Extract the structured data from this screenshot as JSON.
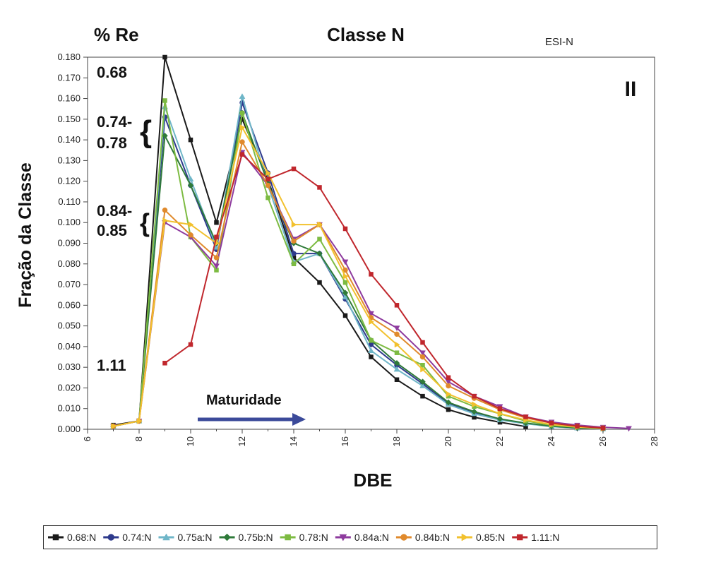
{
  "chart_data": {
    "type": "line",
    "title": "Classe N",
    "subtitle": "ESI-N",
    "panel_label": "II",
    "corner_label": "% Re",
    "xlabel": "DBE",
    "ylabel": "Fração da Classe",
    "xlim": [
      6,
      28
    ],
    "ylim": [
      0,
      0.18
    ],
    "xticks": [
      "6",
      "8",
      "10",
      "12",
      "14",
      "16",
      "18",
      "20",
      "22",
      "24",
      "26",
      "28"
    ],
    "yticks": [
      "0.000",
      "0.010",
      "0.020",
      "0.030",
      "0.040",
      "0.050",
      "0.060",
      "0.070",
      "0.080",
      "0.090",
      "0.100",
      "0.110",
      "0.120",
      "0.130",
      "0.140",
      "0.150",
      "0.160",
      "0.170",
      "0.180"
    ],
    "grid": false,
    "legend_position": "bottom",
    "annotations": {
      "re_068": "0.68",
      "re_074_line1": "0.74-",
      "re_074_line2": "0.78",
      "re_084_line1": "0.84-",
      "re_084_line2": "0.85",
      "re_111": "1.11",
      "brace": "{",
      "arrow_label": "Maturidade",
      "arrow_color": "#3b4a9a"
    },
    "series": [
      {
        "name": "0.68:N",
        "color": "#1a1a1a",
        "marker": "square",
        "x": [
          7,
          8,
          9,
          10,
          11,
          12,
          13,
          14,
          15,
          16,
          17,
          18,
          19,
          20,
          21,
          22,
          23
        ],
        "y": [
          0.002,
          0.004,
          0.18,
          0.14,
          0.1,
          0.15,
          0.121,
          0.083,
          0.071,
          0.055,
          0.035,
          0.024,
          0.016,
          0.0095,
          0.0058,
          0.0034,
          0.0013
        ]
      },
      {
        "name": "0.74:N",
        "color": "#2e3a8c",
        "marker": "circle",
        "x": [
          7,
          8,
          9,
          10,
          11,
          12,
          13,
          14,
          15,
          16,
          17,
          18,
          19,
          20,
          21,
          22,
          23,
          24,
          25,
          26
        ],
        "y": [
          0.0015,
          0.004,
          0.151,
          0.118,
          0.087,
          0.158,
          0.124,
          0.085,
          0.085,
          0.063,
          0.041,
          0.031,
          0.022,
          0.0125,
          0.008,
          0.0048,
          0.0028,
          0.0014,
          0.0006,
          0.0002
        ]
      },
      {
        "name": "0.75a:N",
        "color": "#6fb6c8",
        "marker": "triangle",
        "x": [
          7,
          8,
          9,
          10,
          11,
          12,
          13,
          14,
          15,
          16,
          17,
          18,
          19,
          20,
          21,
          22,
          23,
          24,
          25,
          26
        ],
        "y": [
          0.0015,
          0.004,
          0.156,
          0.121,
          0.088,
          0.161,
          0.118,
          0.081,
          0.085,
          0.064,
          0.038,
          0.029,
          0.021,
          0.012,
          0.0075,
          0.0045,
          0.0027,
          0.0013,
          0.0006,
          0.0002
        ]
      },
      {
        "name": "0.75b:N",
        "color": "#2f7a3a",
        "marker": "diamond",
        "x": [
          7,
          8,
          9,
          10,
          11,
          12,
          13,
          14,
          15,
          16,
          17,
          18,
          19,
          20,
          21,
          22,
          23,
          24,
          25,
          26
        ],
        "y": [
          0.0015,
          0.004,
          0.142,
          0.118,
          0.09,
          0.153,
          0.119,
          0.09,
          0.085,
          0.066,
          0.043,
          0.032,
          0.023,
          0.013,
          0.0085,
          0.005,
          0.003,
          0.0015,
          0.0007,
          0.0003
        ]
      },
      {
        "name": "0.78:N",
        "color": "#7dbb42",
        "marker": "square",
        "x": [
          7,
          8,
          9,
          10,
          11,
          12,
          13,
          14,
          15,
          16,
          17,
          18,
          19,
          20,
          21,
          22,
          23,
          24,
          25,
          26
        ],
        "y": [
          0.0015,
          0.004,
          0.159,
          0.093,
          0.077,
          0.153,
          0.112,
          0.08,
          0.092,
          0.071,
          0.043,
          0.037,
          0.031,
          0.016,
          0.011,
          0.0075,
          0.004,
          0.002,
          0.001,
          0.0004
        ]
      },
      {
        "name": "0.84a:N",
        "color": "#8e3b9e",
        "marker": "triangle-down",
        "x": [
          7,
          8,
          9,
          10,
          11,
          12,
          13,
          14,
          15,
          16,
          17,
          18,
          19,
          20,
          21,
          22,
          23,
          24,
          25,
          26,
          27
        ],
        "y": [
          0.0015,
          0.004,
          0.1,
          0.093,
          0.079,
          0.134,
          0.118,
          0.092,
          0.099,
          0.081,
          0.056,
          0.049,
          0.037,
          0.023,
          0.016,
          0.011,
          0.006,
          0.0035,
          0.002,
          0.001,
          0.0004
        ]
      },
      {
        "name": "0.84b:N",
        "color": "#e08a2c",
        "marker": "circle",
        "x": [
          7,
          8,
          9,
          10,
          11,
          12,
          13,
          14,
          15,
          16,
          17,
          18,
          19,
          20,
          21,
          22,
          23,
          24,
          25,
          26
        ],
        "y": [
          0.0015,
          0.004,
          0.106,
          0.094,
          0.083,
          0.139,
          0.118,
          0.091,
          0.099,
          0.077,
          0.054,
          0.046,
          0.035,
          0.021,
          0.015,
          0.0095,
          0.0055,
          0.003,
          0.0015,
          0.0006
        ]
      },
      {
        "name": "0.85:N",
        "color": "#f2c12e",
        "marker": "triangle-right",
        "x": [
          7,
          8,
          9,
          10,
          11,
          12,
          13,
          14,
          15,
          16,
          17,
          18,
          19,
          20,
          21,
          22,
          23,
          24,
          25,
          26
        ],
        "y": [
          0.0015,
          0.004,
          0.101,
          0.099,
          0.09,
          0.146,
          0.124,
          0.099,
          0.099,
          0.074,
          0.052,
          0.041,
          0.029,
          0.017,
          0.012,
          0.0075,
          0.0045,
          0.0023,
          0.0011,
          0.0004
        ]
      },
      {
        "name": "1.11:N",
        "color": "#c0272d",
        "marker": "square",
        "x": [
          9,
          10,
          11,
          12,
          13,
          14,
          15,
          16,
          17,
          18,
          19,
          20,
          21,
          22,
          23,
          24,
          25,
          26
        ],
        "y": [
          0.032,
          0.041,
          0.093,
          0.133,
          0.121,
          0.126,
          0.117,
          0.097,
          0.075,
          0.06,
          0.042,
          0.025,
          0.016,
          0.01,
          0.006,
          0.003,
          0.0015,
          0.0006
        ]
      }
    ]
  }
}
